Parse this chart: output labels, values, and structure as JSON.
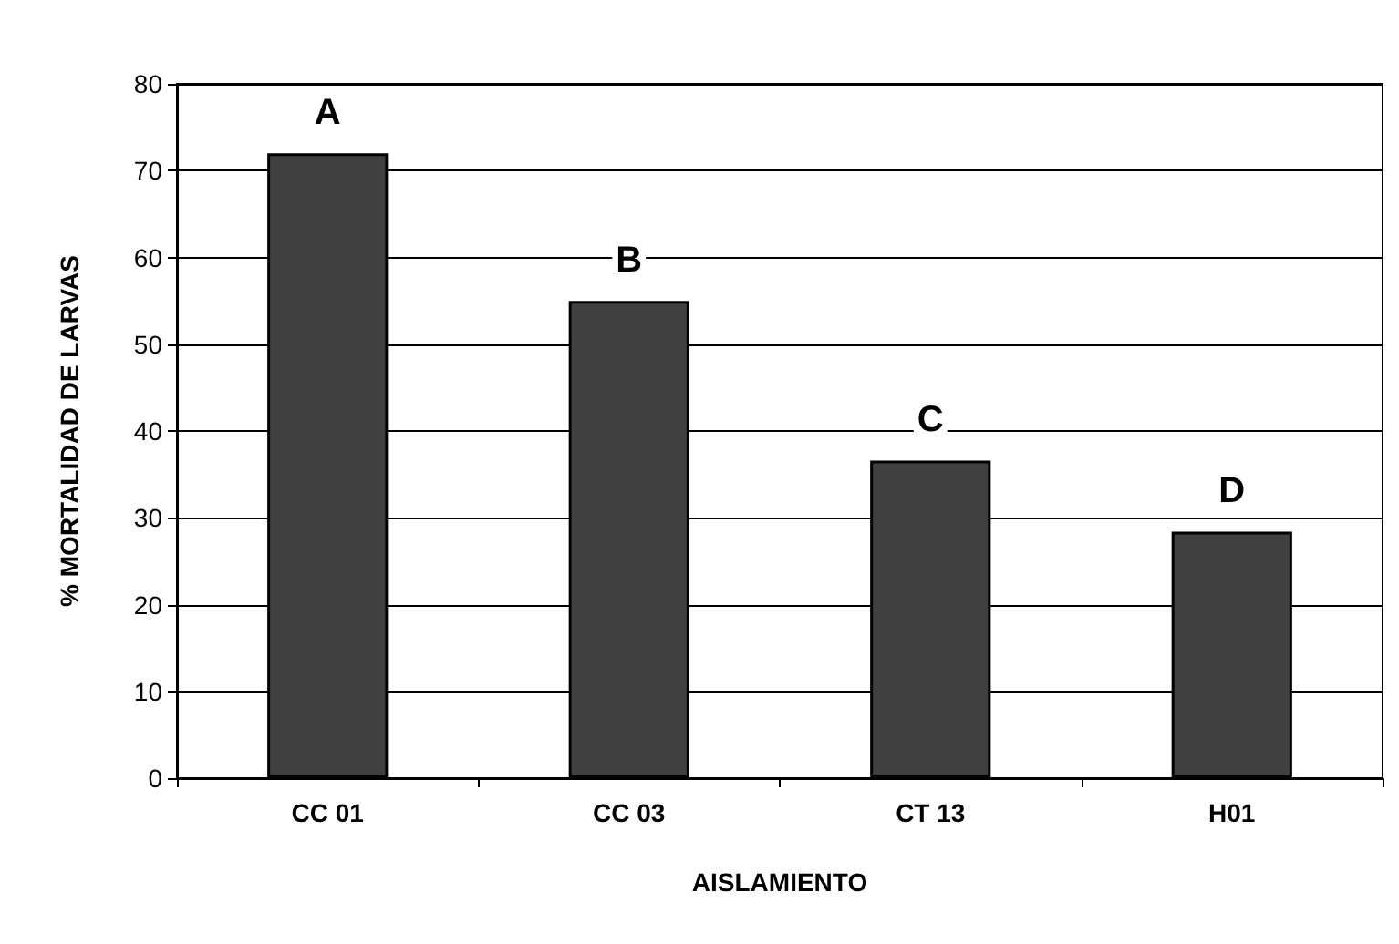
{
  "chart_data": {
    "type": "bar",
    "xlabel": "AISLAMIENTO",
    "ylabel": "% MORTALIDAD DE LARVAS",
    "categories": [
      "CC 01",
      "CC 03",
      "CT 13",
      "H01"
    ],
    "values": [
      72,
      55,
      36.6,
      28.4
    ],
    "color": "#404040",
    "ylim": [
      0,
      80
    ],
    "yticks": [
      0,
      10,
      20,
      30,
      40,
      50,
      60,
      70,
      80
    ],
    "grid": "y",
    "annotations": [
      {
        "text": "A",
        "x": "CC 01",
        "y": 72
      },
      {
        "text": "B",
        "x": "CC 03",
        "y": 55
      },
      {
        "text": "C",
        "x": "CT 13",
        "y": 36.6
      },
      {
        "text": "D",
        "x": "H01",
        "y": 28.4
      }
    ]
  }
}
